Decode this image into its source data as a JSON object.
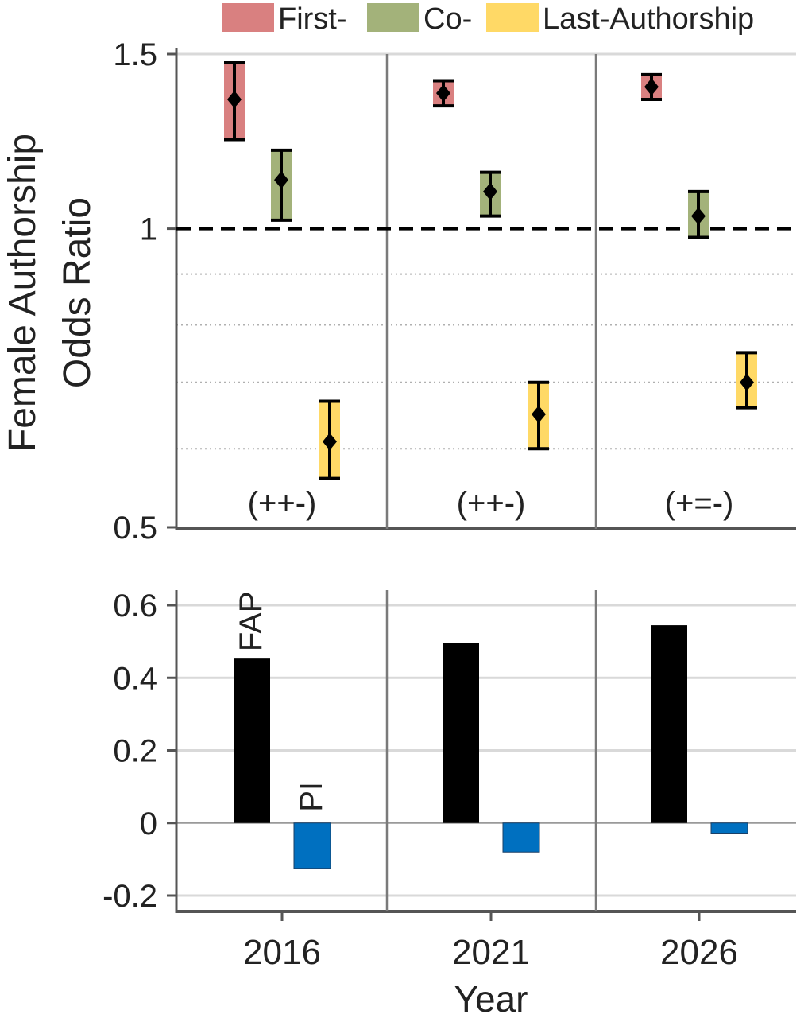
{
  "colors": {
    "first": "#d98080",
    "co": "#a3b27a",
    "last": "#ffd966",
    "fap": "#000000",
    "pi": "#0070c0",
    "axis": "#555555",
    "grid": "#d9d9d9",
    "dotted_grid": "#b0b0b0",
    "reference_line": "#000000"
  },
  "legend": {
    "items": [
      {
        "key": "first",
        "label": "First-"
      },
      {
        "key": "co",
        "label": "Co-"
      },
      {
        "key": "last",
        "label": "Last-Authorship"
      }
    ]
  },
  "chart_data": [
    {
      "type": "scatter",
      "subtype": "error-bar",
      "ylabel": "Female Authorship Odds Ratio",
      "ylabel_lines": [
        "Female Authorship",
        "Odds Ratio"
      ],
      "y_scale": "log",
      "ylim": [
        0.5,
        1.5
      ],
      "yticks": [
        {
          "value": 0.5,
          "label": "0.5"
        },
        {
          "value": 1.0,
          "label": "1"
        },
        {
          "value": 1.5,
          "label": "1.5"
        }
      ],
      "minor_gridlines": [
        0.6,
        0.7,
        0.8,
        0.9
      ],
      "reference_line": 1.0,
      "categories": [
        "2016",
        "2021",
        "2026"
      ],
      "series": [
        {
          "key": "first",
          "name": "First-",
          "points": [
            {
              "category": "2016",
              "value": 1.35,
              "low": 1.23,
              "high": 1.47
            },
            {
              "category": "2021",
              "value": 1.37,
              "low": 1.33,
              "high": 1.41
            },
            {
              "category": "2026",
              "value": 1.39,
              "low": 1.35,
              "high": 1.43
            }
          ]
        },
        {
          "key": "co",
          "name": "Co-",
          "points": [
            {
              "category": "2016",
              "value": 1.12,
              "low": 1.02,
              "high": 1.2
            },
            {
              "category": "2021",
              "value": 1.09,
              "low": 1.03,
              "high": 1.14
            },
            {
              "category": "2026",
              "value": 1.03,
              "low": 0.98,
              "high": 1.09
            }
          ]
        },
        {
          "key": "last",
          "name": "Last-Authorship",
          "points": [
            {
              "category": "2016",
              "value": 0.61,
              "low": 0.56,
              "high": 0.67
            },
            {
              "category": "2021",
              "value": 0.65,
              "low": 0.6,
              "high": 0.7
            },
            {
              "category": "2026",
              "value": 0.7,
              "low": 0.66,
              "high": 0.75
            }
          ]
        }
      ],
      "annotations": [
        {
          "category": "2016",
          "text": "(++-)"
        },
        {
          "category": "2021",
          "text": "(++-)"
        },
        {
          "category": "2026",
          "text": "(+=-)"
        }
      ]
    },
    {
      "type": "bar",
      "xlabel": "Year",
      "ylim": [
        -0.2,
        0.6
      ],
      "yticks": [
        {
          "value": -0.2,
          "label": "-0.2"
        },
        {
          "value": 0.0,
          "label": "0"
        },
        {
          "value": 0.2,
          "label": "0.2"
        },
        {
          "value": 0.4,
          "label": "0.4"
        },
        {
          "value": 0.6,
          "label": "0.6"
        }
      ],
      "categories": [
        "2016",
        "2021",
        "2026"
      ],
      "series": [
        {
          "key": "fap",
          "name": "FAP",
          "values": [
            0.455,
            0.495,
            0.545
          ]
        },
        {
          "key": "pi",
          "name": "PI",
          "values": [
            -0.125,
            -0.08,
            -0.028
          ]
        }
      ]
    }
  ]
}
